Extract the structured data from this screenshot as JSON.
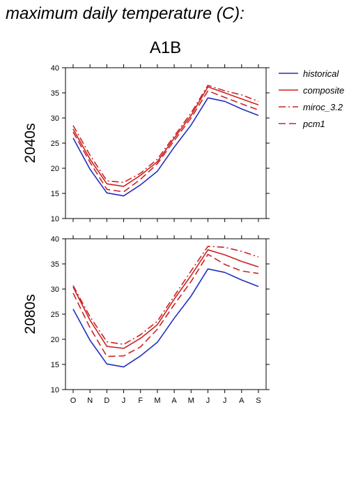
{
  "page": {
    "title": "maximum daily temperature (C):",
    "scenario": "A1B"
  },
  "colors": {
    "historical": "#1f2fbf",
    "projection": "#cc2222"
  },
  "chart_data": [
    {
      "type": "line",
      "row_label": "2040s",
      "title": "A1B",
      "xlabel": "",
      "ylabel": "",
      "categories": [
        "O",
        "N",
        "D",
        "J",
        "F",
        "M",
        "A",
        "M",
        "J",
        "J",
        "A",
        "S"
      ],
      "ylim": [
        10,
        40
      ],
      "yticks": [
        10,
        15,
        20,
        25,
        30,
        35,
        40
      ],
      "series": [
        {
          "name": "historical",
          "style": "solid",
          "color": "#1f2fbf",
          "values": [
            26.0,
            19.8,
            15.1,
            14.5,
            16.7,
            19.4,
            24.2,
            28.6,
            34.0,
            33.3,
            31.8,
            30.5
          ]
        },
        {
          "name": "composite",
          "style": "solid",
          "color": "#cc2222",
          "values": [
            27.8,
            21.8,
            16.9,
            16.4,
            18.6,
            21.3,
            26.0,
            30.5,
            36.2,
            35.0,
            33.8,
            32.6
          ]
        },
        {
          "name": "miroc_3.2",
          "style": "dashdot",
          "color": "#cc2222",
          "values": [
            28.5,
            22.6,
            17.5,
            17.2,
            19.0,
            21.8,
            26.4,
            31.0,
            36.5,
            35.4,
            34.6,
            33.3
          ]
        },
        {
          "name": "pcm1",
          "style": "dashed",
          "color": "#cc2222",
          "values": [
            27.2,
            21.2,
            15.8,
            15.3,
            17.8,
            20.9,
            25.5,
            30.0,
            35.4,
            34.1,
            32.8,
            31.6
          ]
        }
      ]
    },
    {
      "type": "line",
      "row_label": "2080s",
      "xlabel": "",
      "ylabel": "",
      "categories": [
        "O",
        "N",
        "D",
        "J",
        "F",
        "M",
        "A",
        "M",
        "J",
        "J",
        "A",
        "S"
      ],
      "ylim": [
        10,
        40
      ],
      "yticks": [
        10,
        15,
        20,
        25,
        30,
        35,
        40
      ],
      "series": [
        {
          "name": "historical",
          "style": "solid",
          "color": "#1f2fbf",
          "values": [
            26.0,
            19.8,
            15.1,
            14.5,
            16.7,
            19.4,
            24.2,
            28.6,
            34.0,
            33.3,
            31.8,
            30.5
          ]
        },
        {
          "name": "composite",
          "style": "solid",
          "color": "#cc2222",
          "values": [
            30.4,
            23.8,
            18.6,
            18.2,
            20.2,
            22.9,
            28.0,
            32.7,
            37.8,
            36.8,
            35.5,
            34.4
          ]
        },
        {
          "name": "miroc_3.2",
          "style": "dashdot",
          "color": "#cc2222",
          "values": [
            30.7,
            24.5,
            19.5,
            19.0,
            20.9,
            23.6,
            28.6,
            33.6,
            38.5,
            38.3,
            37.5,
            36.4
          ]
        },
        {
          "name": "pcm1",
          "style": "dashed",
          "color": "#cc2222",
          "values": [
            29.2,
            22.3,
            16.6,
            16.7,
            18.5,
            22.0,
            26.9,
            31.5,
            36.9,
            34.9,
            33.6,
            33.1
          ]
        }
      ]
    }
  ],
  "legend": {
    "placement": "right",
    "entries": [
      {
        "label": "historical",
        "style": "solid",
        "color": "#1f2fbf"
      },
      {
        "label": "composite",
        "style": "solid",
        "color": "#cc2222"
      },
      {
        "label": "miroc_3.2",
        "style": "dashdot",
        "color": "#cc2222"
      },
      {
        "label": "pcm1",
        "style": "dashed",
        "color": "#cc2222"
      }
    ]
  }
}
